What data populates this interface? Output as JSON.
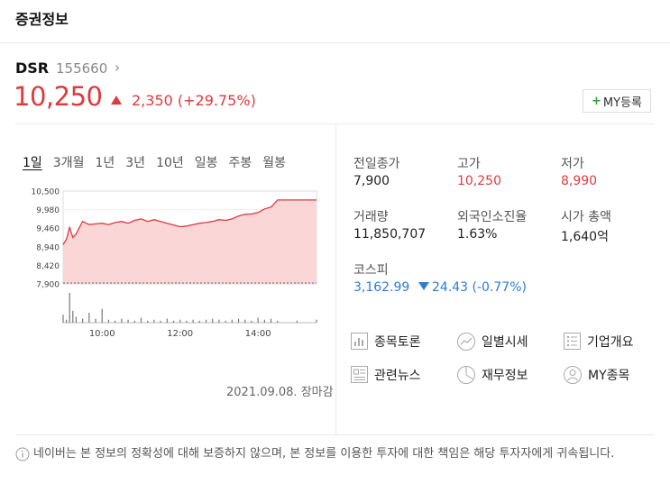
{
  "header": {
    "title": "증권정보"
  },
  "stock": {
    "name": "DSR",
    "code": "155660",
    "code_arrow": "›",
    "price": "10,250",
    "change": "2,350",
    "change_pct": "(+29.75%)",
    "my_button": "MY등록"
  },
  "tabs": [
    "1일",
    "3개월",
    "1년",
    "3년",
    "10년",
    "일봉",
    "주봉",
    "월봉"
  ],
  "chart_data": {
    "type": "area",
    "y_ticks": [
      "10,500",
      "9,980",
      "9,460",
      "8,940",
      "8,420",
      "7,900"
    ],
    "ylim": [
      7900,
      10500
    ],
    "x_ticks": [
      "10:00",
      "12:00",
      "14:00"
    ],
    "previous_close": 7900,
    "series": [
      {
        "name": "",
        "x": [
          "09:00",
          "09:05",
          "09:10",
          "09:15",
          "09:20",
          "09:30",
          "09:40",
          "09:50",
          "10:00",
          "10:10",
          "10:20",
          "10:30",
          "10:40",
          "10:50",
          "11:00",
          "11:10",
          "11:20",
          "11:30",
          "11:40",
          "11:50",
          "12:00",
          "12:10",
          "12:20",
          "12:30",
          "12:40",
          "12:50",
          "13:00",
          "13:10",
          "13:20",
          "13:30",
          "13:40",
          "13:50",
          "14:00",
          "14:10",
          "14:20",
          "14:30",
          "15:00",
          "15:30"
        ],
        "values": [
          9000,
          9150,
          9480,
          9200,
          9300,
          9650,
          9560,
          9580,
          9600,
          9560,
          9620,
          9650,
          9600,
          9680,
          9720,
          9650,
          9700,
          9650,
          9600,
          9550,
          9500,
          9520,
          9560,
          9600,
          9620,
          9650,
          9700,
          9680,
          9720,
          9800,
          9850,
          9860,
          9900,
          10000,
          10050,
          10250,
          10250,
          10250
        ]
      }
    ],
    "volume": [
      8,
      3,
      30,
      12,
      6,
      4,
      10,
      4,
      14,
      3,
      2,
      4,
      3,
      2,
      5,
      2,
      3,
      2,
      4,
      2,
      3,
      2,
      3,
      2,
      3,
      4,
      3,
      2,
      3,
      4,
      3,
      2,
      5,
      3,
      4,
      2,
      2,
      3
    ],
    "grid": true,
    "status": "2021.09.08. 장마감"
  },
  "info": {
    "prev_close_label": "전일종가",
    "prev_close": "7,900",
    "high_label": "고가",
    "high": "10,250",
    "low_label": "저가",
    "low": "8,990",
    "volume_label": "거래량",
    "volume": "11,850,707",
    "foreign_label": "외국인소진율",
    "foreign": "1.63%",
    "mcap_label": "시가 총액",
    "mcap": "1,640억",
    "index_label": "코스피",
    "index_value": "3,162.99",
    "index_change": "24.43 (-0.77%)"
  },
  "menu": [
    {
      "label": "종목토론",
      "icon": "chart-board-icon"
    },
    {
      "label": "일별시세",
      "icon": "line-chart-icon"
    },
    {
      "label": "기업개요",
      "icon": "list-icon"
    },
    {
      "label": "관련뉴스",
      "icon": "news-icon"
    },
    {
      "label": "재무정보",
      "icon": "pie-chart-icon"
    },
    {
      "label": "MY종목",
      "icon": "user-icon"
    }
  ],
  "notice": "네이버는 본 정보의 정확성에 대해 보증하지 않으며, 본 정보를 이용한 투자에 대한 책임은 해당 투자자에게 귀속됩니다.",
  "colors": {
    "up": "#e0393e",
    "down": "#2a7ed6",
    "accent_green": "#2ca53a"
  }
}
